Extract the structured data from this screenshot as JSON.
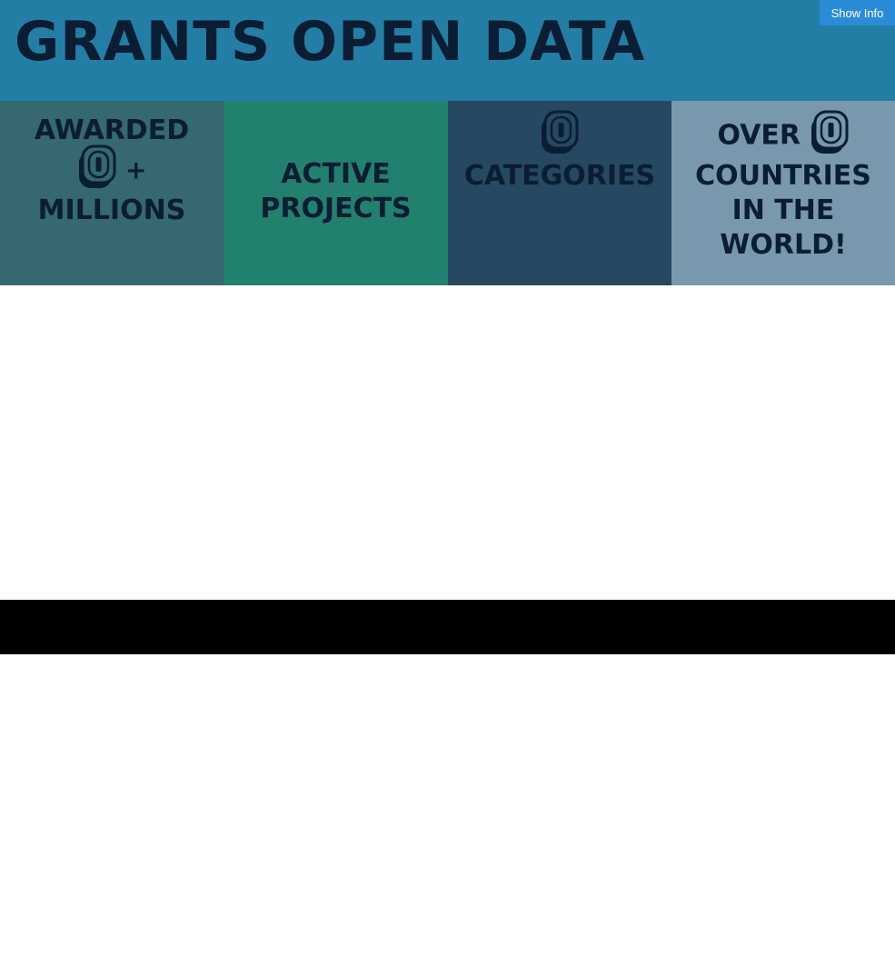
{
  "header": {
    "title": "GRANTS OPEN DATA",
    "show_info_label": "Show Info"
  },
  "tiles": [
    {
      "prefix": "AWARDED",
      "count": "0",
      "suffix": "+",
      "line3": "MILLIONS"
    },
    {
      "line1": "ACTIVE",
      "line2": "PROJECTS"
    },
    {
      "count": "0",
      "line2": "CATEGORIES"
    },
    {
      "prefix": "OVER",
      "count": "0",
      "line2": "COUNTRIES",
      "line3": "IN THE",
      "line4": "WORLD!"
    }
  ],
  "colors": {
    "header_bg": "#237ea6",
    "tile_awarded": "#35686f",
    "tile_projects": "#22806f",
    "tile_categories": "#264862",
    "tile_countries": "#7a98ad",
    "text": "#0b1d33",
    "button": "#2c8bd6",
    "footer": "#000000"
  }
}
